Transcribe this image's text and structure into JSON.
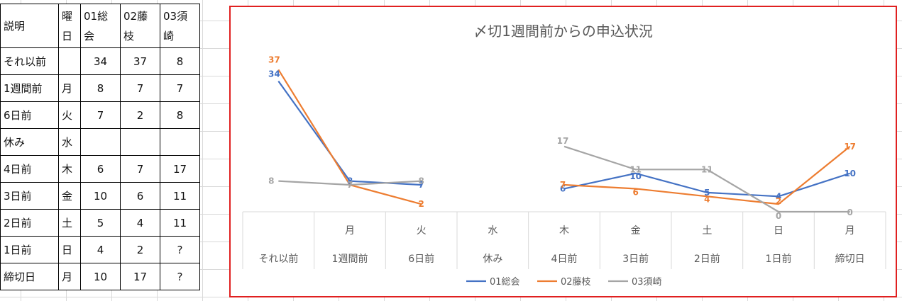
{
  "table": {
    "header": [
      "説明",
      "曜日",
      "01総会",
      "02藤枝",
      "03須崎"
    ],
    "rows": [
      [
        "それ以前",
        "",
        "34",
        "37",
        "8"
      ],
      [
        "1週間前",
        "月",
        "8",
        "7",
        "7"
      ],
      [
        "6日前",
        "火",
        "7",
        "2",
        "8"
      ],
      [
        "休み",
        "水",
        "",
        "",
        ""
      ],
      [
        "4日前",
        "木",
        "6",
        "7",
        "17"
      ],
      [
        "3日前",
        "金",
        "10",
        "6",
        "11"
      ],
      [
        "2日前",
        "土",
        "5",
        "4",
        "11"
      ],
      [
        "1日前",
        "日",
        "4",
        "2",
        "?"
      ],
      [
        "締切日",
        "月",
        "10",
        "17",
        "?"
      ]
    ]
  },
  "chart_data": {
    "type": "line",
    "title": "〆切1週間前からの申込状況",
    "categories": [
      [
        "",
        "それ以前"
      ],
      [
        "月",
        "1週間前"
      ],
      [
        "火",
        "6日前"
      ],
      [
        "水",
        "休み"
      ],
      [
        "木",
        "4日前"
      ],
      [
        "金",
        "3日前"
      ],
      [
        "土",
        "2日前"
      ],
      [
        "日",
        "1日前"
      ],
      [
        "月",
        "締切日"
      ]
    ],
    "series": [
      {
        "name": "01総会",
        "color": "#4472c4",
        "values": [
          34,
          8,
          7,
          null,
          6,
          10,
          5,
          4,
          10
        ]
      },
      {
        "name": "02藤枝",
        "color": "#ed7d31",
        "values": [
          37,
          7,
          2,
          null,
          7,
          6,
          4,
          2,
          17
        ]
      },
      {
        "name": "03須崎",
        "color": "#a5a5a5",
        "values": [
          8,
          7,
          8,
          null,
          17,
          11,
          11,
          0,
          0
        ]
      }
    ],
    "ylim": [
      0,
      40
    ],
    "legend": "bottom",
    "grid": false
  }
}
